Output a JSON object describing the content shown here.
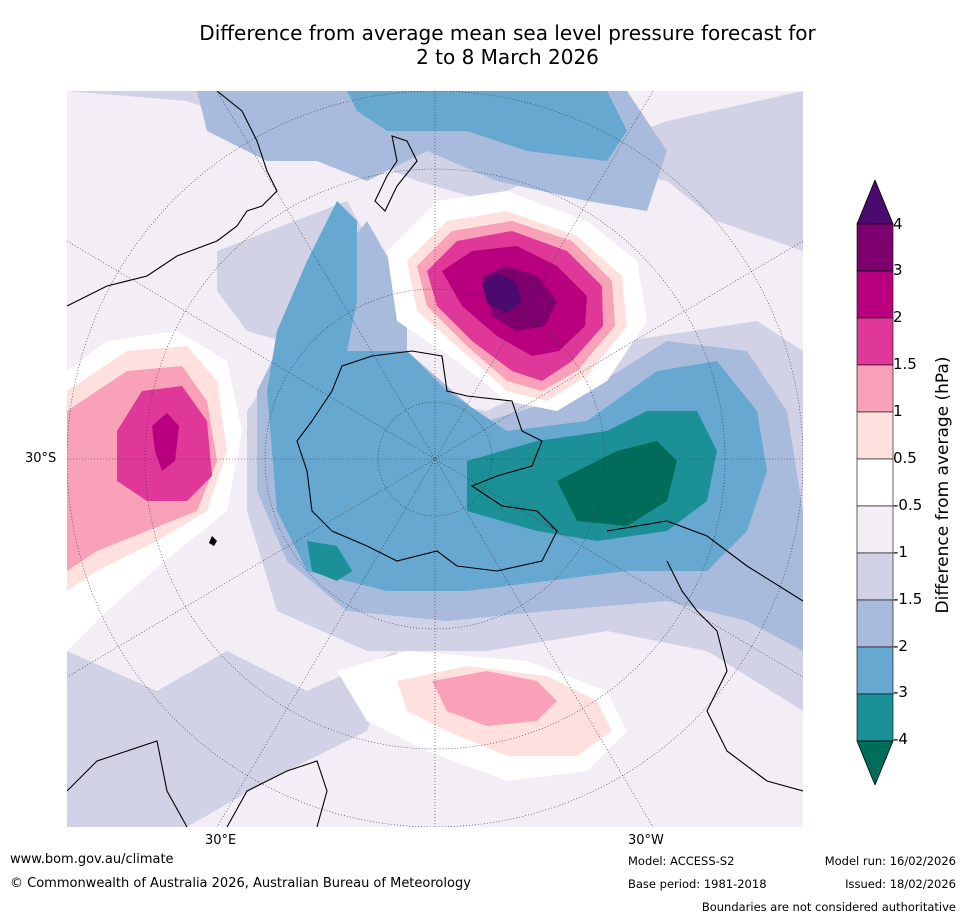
{
  "header": {
    "title_line1": "Difference from average mean sea level pressure forecast for",
    "title_line2": "2 to 8 March 2026"
  },
  "map": {
    "projection": "south-polar stereographic",
    "lat_label_left": "30°S",
    "lon_label_bottom_left": "30°E",
    "lon_label_bottom_right": "30°W",
    "features": [
      {
        "name": "positive anomaly south of New Zealand",
        "max_hPa": 4
      },
      {
        "name": "positive anomaly southern Indian Ocean",
        "max_hPa": 3
      },
      {
        "name": "positive anomaly South Atlantic",
        "max_hPa": 1.5
      },
      {
        "name": "negative anomaly Amundsen-Bellingshausen / Drake Passage",
        "min_hPa": -4
      }
    ]
  },
  "colorbar": {
    "title": "Difference from average (hPa)",
    "ticks": [
      "4",
      "3",
      "2",
      "1.5",
      "1",
      "0.5",
      "-0.5",
      "-1",
      "-1.5",
      "-2",
      "-3",
      "-4"
    ],
    "colors": [
      "#4b0a6e",
      "#7d006e",
      "#b8007f",
      "#df3898",
      "#f8a1b8",
      "#fee1df",
      "#ffffff",
      "#f3edf5",
      "#d2d2e6",
      "#a8bbdd",
      "#66a8d0",
      "#1b9096",
      "#006d5b"
    ]
  },
  "footer": {
    "website": "www.bom.gov.au/climate",
    "copyright": "© Commonwealth of Australia 2026, Australian Bureau of Meteorology",
    "model": "Model: ACCESS-S2",
    "base_period": "Base period: 1981-2018",
    "model_run": "Model run: 16/02/2026",
    "issued": "Issued: 18/02/2026",
    "disclaimer": "Boundaries are not considered authoritative"
  }
}
